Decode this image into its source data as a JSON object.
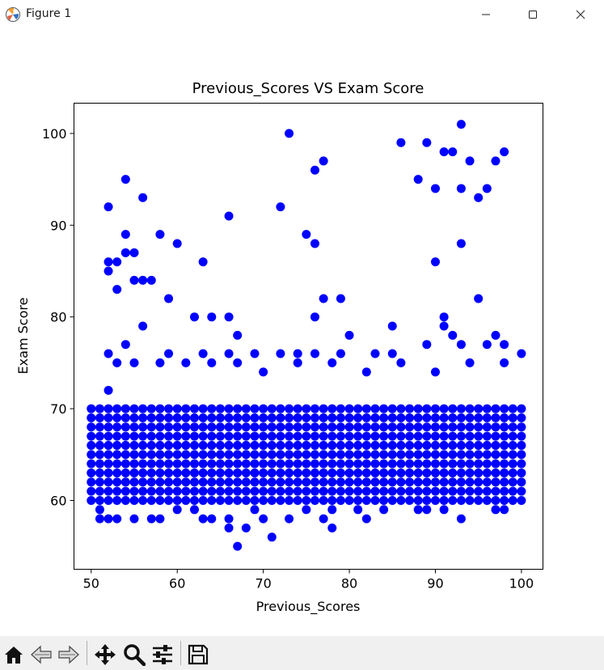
{
  "window": {
    "title": "Figure 1",
    "icon": "matplotlib-icon",
    "controls": [
      "minimize-icon",
      "maximize-icon",
      "close-icon"
    ]
  },
  "toolbar": {
    "buttons": [
      "home-icon",
      "back-icon",
      "forward-icon",
      "pan-icon",
      "zoom-icon",
      "configure-subplots-icon",
      "save-icon"
    ]
  },
  "chart_data": {
    "type": "scatter",
    "title": "Previous_Scores VS Exam Score",
    "xlabel": "Previous_Scores",
    "ylabel": "Exam Score",
    "xlim": [
      48,
      102.5
    ],
    "ylim": [
      52.5,
      103.3
    ],
    "xticks": [
      50,
      60,
      70,
      80,
      90,
      100
    ],
    "yticks": [
      60,
      70,
      80,
      90,
      100
    ],
    "grid": false,
    "legend": "none",
    "marker_color": "#0000ff",
    "dense_region": {
      "description": "points at every integer pair",
      "x_range": [
        50,
        100
      ],
      "y_range": [
        60,
        70
      ],
      "note": "integer Previous_Scores 50-100 combined with integer Exam Scores 60-70"
    },
    "outliers": [
      [
        52,
        92
      ],
      [
        53,
        86
      ],
      [
        52,
        86
      ],
      [
        52,
        85
      ],
      [
        53,
        83
      ],
      [
        54,
        95
      ],
      [
        54,
        89
      ],
      [
        54,
        87
      ],
      [
        55,
        87
      ],
      [
        55,
        84
      ],
      [
        56,
        84
      ],
      [
        57,
        84
      ],
      [
        56,
        93
      ],
      [
        56,
        79
      ],
      [
        58,
        89
      ],
      [
        59,
        82
      ],
      [
        60,
        88
      ],
      [
        62,
        80
      ],
      [
        63,
        86
      ],
      [
        64,
        80
      ],
      [
        66,
        91
      ],
      [
        66,
        80
      ],
      [
        67,
        78
      ],
      [
        72,
        92
      ],
      [
        73,
        100
      ],
      [
        75,
        89
      ],
      [
        76,
        96
      ],
      [
        76,
        88
      ],
      [
        77,
        97
      ],
      [
        76,
        80
      ],
      [
        77,
        82
      ],
      [
        79,
        82
      ],
      [
        80,
        78
      ],
      [
        86,
        99
      ],
      [
        85,
        79
      ],
      [
        88,
        95
      ],
      [
        89,
        99
      ],
      [
        90,
        94
      ],
      [
        90,
        86
      ],
      [
        91,
        98
      ],
      [
        92,
        98
      ],
      [
        91,
        80
      ],
      [
        91,
        79
      ],
      [
        92,
        78
      ],
      [
        93,
        101
      ],
      [
        93,
        94
      ],
      [
        93,
        88
      ],
      [
        94,
        97
      ],
      [
        95,
        93
      ],
      [
        96,
        94
      ],
      [
        95,
        82
      ],
      [
        97,
        97
      ],
      [
        98,
        98
      ],
      [
        97,
        78
      ],
      [
        98,
        77
      ],
      [
        96,
        77
      ],
      [
        54,
        77
      ],
      [
        52,
        76
      ],
      [
        59,
        76
      ],
      [
        63,
        76
      ],
      [
        66,
        76
      ],
      [
        69,
        76
      ],
      [
        72,
        76
      ],
      [
        74,
        76
      ],
      [
        76,
        76
      ],
      [
        79,
        76
      ],
      [
        83,
        76
      ],
      [
        85,
        76
      ],
      [
        89,
        77
      ],
      [
        93,
        77
      ],
      [
        100,
        76
      ],
      [
        52,
        72
      ],
      [
        53,
        75
      ],
      [
        55,
        75
      ],
      [
        58,
        75
      ],
      [
        61,
        75
      ],
      [
        64,
        75
      ],
      [
        67,
        75
      ],
      [
        70,
        74
      ],
      [
        74,
        75
      ],
      [
        78,
        75
      ],
      [
        82,
        74
      ],
      [
        86,
        75
      ],
      [
        90,
        74
      ],
      [
        94,
        75
      ],
      [
        98,
        75
      ],
      [
        51,
        59
      ],
      [
        51,
        58
      ],
      [
        52,
        58
      ],
      [
        53,
        58
      ],
      [
        55,
        58
      ],
      [
        57,
        58
      ],
      [
        58,
        58
      ],
      [
        60,
        59
      ],
      [
        62,
        59
      ],
      [
        63,
        58
      ],
      [
        64,
        58
      ],
      [
        66,
        57
      ],
      [
        66,
        58
      ],
      [
        67,
        55
      ],
      [
        68,
        57
      ],
      [
        69,
        59
      ],
      [
        71,
        56
      ],
      [
        70,
        58
      ],
      [
        73,
        58
      ],
      [
        75,
        59
      ],
      [
        77,
        58
      ],
      [
        78,
        57
      ],
      [
        78,
        59
      ],
      [
        80,
        60
      ],
      [
        81,
        59
      ],
      [
        82,
        58
      ],
      [
        84,
        59
      ],
      [
        86,
        60
      ],
      [
        88,
        59
      ],
      [
        89,
        59
      ],
      [
        91,
        59
      ],
      [
        93,
        58
      ],
      [
        97,
        59
      ],
      [
        98,
        59
      ],
      [
        100,
        60
      ]
    ]
  }
}
